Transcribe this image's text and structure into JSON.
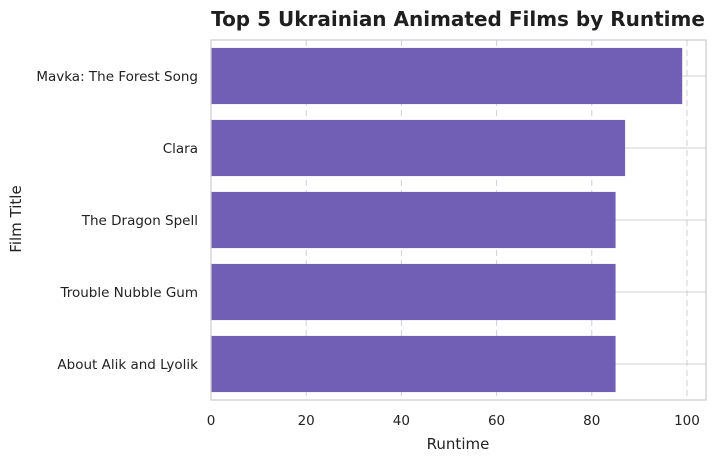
{
  "chart_data": {
    "type": "bar",
    "orientation": "horizontal",
    "title": "Top 5 Ukrainian Animated Films by Runtime",
    "xlabel": "Runtime",
    "ylabel": "Film Title",
    "xlim": [
      0,
      104
    ],
    "xticks": [
      0,
      20,
      40,
      60,
      80,
      100
    ],
    "grid": "vertical dashed",
    "categories": [
      "Mavka: The Forest Song",
      "Clara",
      "The Dragon Spell",
      "Trouble Nubble Gum",
      "About Alik and Lyolik"
    ],
    "values": [
      99,
      87,
      85,
      85,
      85
    ],
    "bar_color": "#705fb5",
    "grid_color": "#d0d0d0",
    "axis_color": "#cccccc"
  }
}
